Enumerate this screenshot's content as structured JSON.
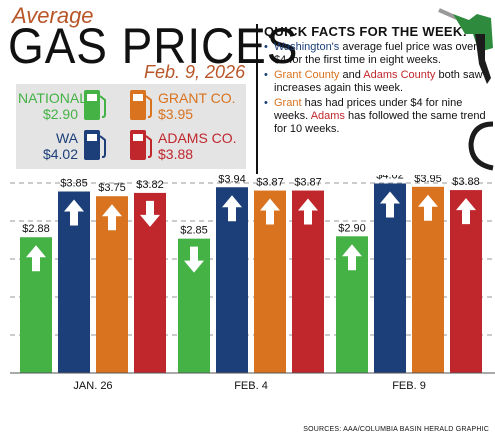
{
  "header": {
    "small_title": "Average",
    "main_title": "GAS PRICES",
    "date": "Feb. 9, 2026"
  },
  "legend": [
    {
      "name": "NATIONAL",
      "price": "$2.90",
      "color": "#44b245"
    },
    {
      "name": "GRANT CO.",
      "price": "$3.95",
      "color": "#d9731f"
    },
    {
      "name": "WA",
      "price": "$4.02",
      "color": "#1c3f7a"
    },
    {
      "name": "ADAMS CO.",
      "price": "$3.88",
      "color": "#c0272d"
    }
  ],
  "facts": {
    "title": "QUICK FACTS FOR THE WEEK:",
    "f1_a": "Washington's",
    "f1_b": " average fuel price was over $4 for the first time in eight weeks.",
    "f2_a": "Grant County",
    "f2_b": " and ",
    "f2_c": "Adams County",
    "f2_d": " both saw increases again this week.",
    "f3_a": "Grant",
    "f3_b": " has had prices under $4 for nine weeks. ",
    "f3_c": "Adams",
    "f3_d": " has followed the same trend for 10 weeks."
  },
  "chart_data": {
    "type": "bar",
    "categories": [
      "JAN. 26",
      "FEB. 4",
      "FEB. 9"
    ],
    "series": [
      {
        "name": "NATIONAL",
        "color": "#44b245",
        "values": [
          2.88,
          2.85,
          2.9
        ],
        "labels": [
          "$2.88",
          "$2.85",
          "$2.90"
        ],
        "direction": [
          "up",
          "down",
          "up"
        ]
      },
      {
        "name": "WA",
        "color": "#1c3f7a",
        "values": [
          3.85,
          3.94,
          4.02
        ],
        "labels": [
          "$3.85",
          "$3.94",
          "$4.02"
        ],
        "direction": [
          "up",
          "up",
          "up"
        ]
      },
      {
        "name": "GRANT CO.",
        "color": "#d9731f",
        "values": [
          3.75,
          3.87,
          3.95
        ],
        "labels": [
          "$3.75",
          "$3.87",
          "$3.95"
        ],
        "direction": [
          "up",
          "up",
          "up"
        ]
      },
      {
        "name": "ADAMS CO.",
        "color": "#c0272d",
        "values": [
          3.82,
          3.87,
          3.88
        ],
        "labels": [
          "$3.82",
          "$3.87",
          "$3.88"
        ],
        "direction": [
          "down",
          "up",
          "up"
        ]
      }
    ],
    "ylim": [
      0,
      4.2
    ],
    "grid": true
  },
  "source": "SOURCES: AAA/COLUMBIA BASIN HERALD GRAPHIC"
}
